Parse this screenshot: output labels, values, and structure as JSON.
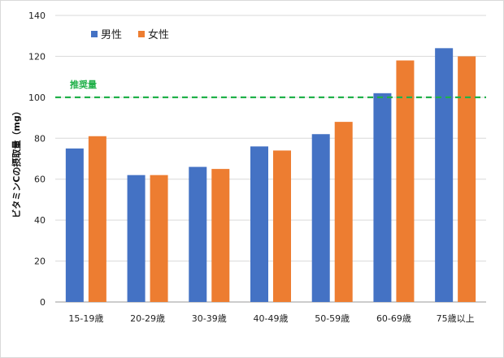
{
  "chart_data": {
    "type": "bar",
    "title": "",
    "xlabel": "",
    "ylabel": "ビタミンCの摂取量（mg）",
    "ylim": [
      0,
      140
    ],
    "yticks": [
      0,
      20,
      40,
      60,
      80,
      100,
      120,
      140
    ],
    "grid": true,
    "legend_position": "top-left",
    "categories": [
      "15-19歳",
      "20-29歳",
      "30-39歳",
      "40-49歳",
      "50-59歳",
      "60-69歳",
      "75歳以上"
    ],
    "series": [
      {
        "name": "男性",
        "color": "#4472c4",
        "values": [
          75,
          62,
          66,
          76,
          82,
          102,
          124
        ]
      },
      {
        "name": "女性",
        "color": "#ed7d31",
        "values": [
          81,
          62,
          65,
          74,
          88,
          118,
          120
        ]
      }
    ],
    "reference_line": {
      "label": "推奨量",
      "value": 100,
      "color": "#21b14a",
      "style": "dashed"
    }
  }
}
